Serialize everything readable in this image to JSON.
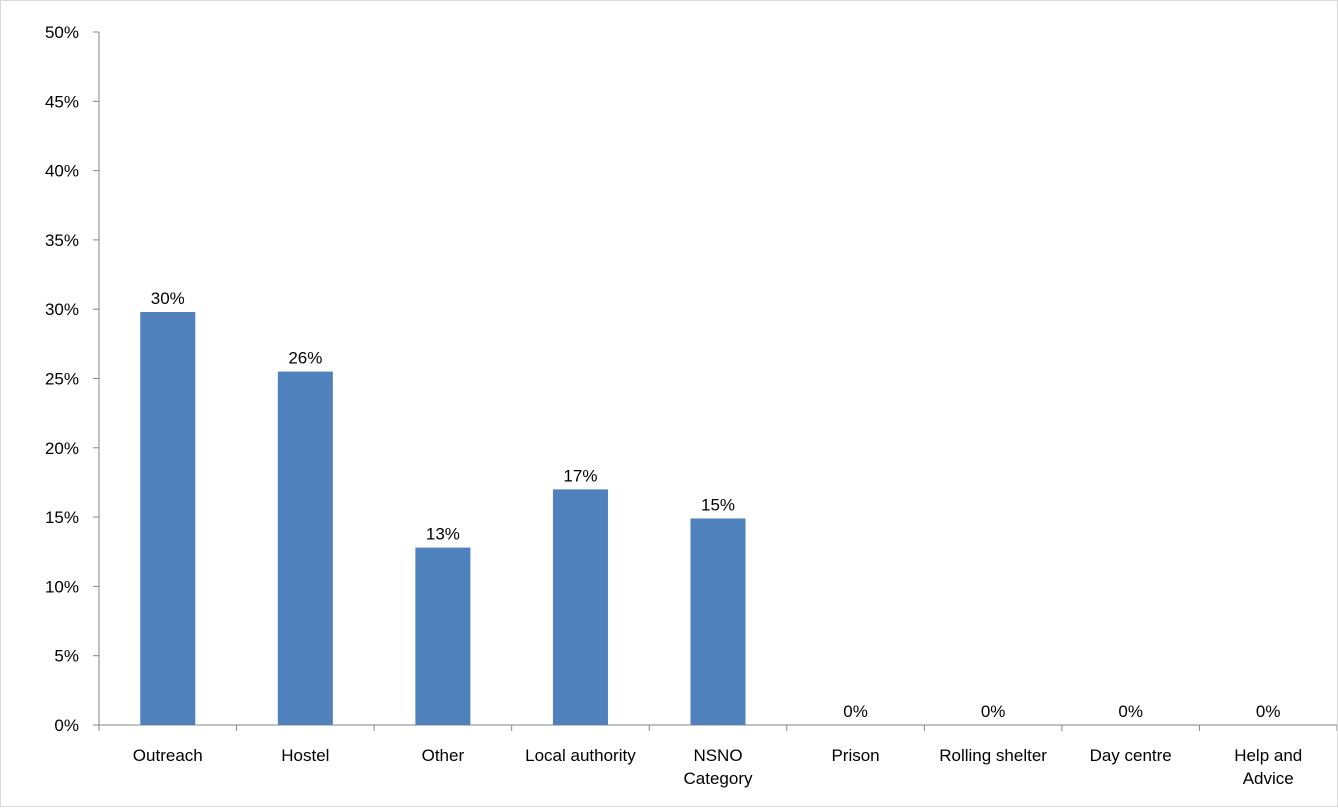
{
  "chart_data": {
    "type": "bar",
    "title": "",
    "xlabel": "",
    "ylabel": "",
    "ylim": [
      0,
      50
    ],
    "y_ticks": [
      0,
      5,
      10,
      15,
      20,
      25,
      30,
      35,
      40,
      45,
      50
    ],
    "y_tick_labels": [
      "0%",
      "5%",
      "10%",
      "15%",
      "20%",
      "25%",
      "30%",
      "35%",
      "40%",
      "45%",
      "50%"
    ],
    "categories": [
      [
        "Outreach"
      ],
      [
        "Hostel"
      ],
      [
        "Other"
      ],
      [
        "Local authority"
      ],
      [
        "NSNO",
        "Category"
      ],
      [
        "Prison"
      ],
      [
        "Rolling shelter"
      ],
      [
        "Day centre"
      ],
      [
        "Help and",
        "Advice"
      ]
    ],
    "values": [
      29.8,
      25.5,
      12.8,
      17.0,
      14.9,
      0,
      0,
      0,
      0
    ],
    "data_labels": [
      "30%",
      "26%",
      "13%",
      "17%",
      "15%",
      "0%",
      "0%",
      "0%",
      "0%"
    ],
    "bar_color": "#4f81bd",
    "grid": false,
    "legend": "none"
  }
}
